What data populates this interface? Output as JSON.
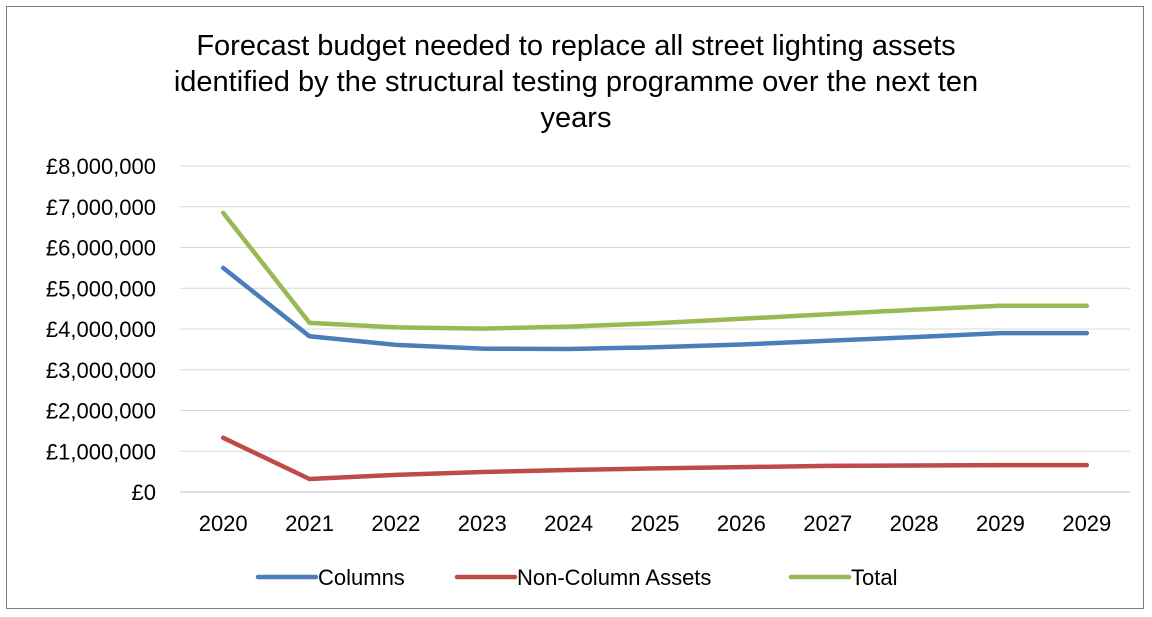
{
  "chart_data": {
    "type": "line",
    "title_lines": [
      "Forecast budget needed to replace all street lighting assets",
      "identified by the structural testing programme over the next ten",
      "years"
    ],
    "categories": [
      "2020",
      "2021",
      "2022",
      "2023",
      "2024",
      "2025",
      "2026",
      "2027",
      "2028",
      "2029",
      "2029"
    ],
    "y_ticks": [
      "£0",
      "£1,000,000",
      "£2,000,000",
      "£3,000,000",
      "£4,000,000",
      "£5,000,000",
      "£6,000,000",
      "£7,000,000",
      "£8,000,000"
    ],
    "ylim": [
      0,
      8000000
    ],
    "grid": "horizontal",
    "legend_position": "bottom",
    "series": [
      {
        "name": "Columns",
        "color": "#4a7ebb",
        "values": [
          5500000,
          3820000,
          3610000,
          3520000,
          3510000,
          3550000,
          3620000,
          3710000,
          3800000,
          3900000,
          3900000
        ]
      },
      {
        "name": "Non-Column Assets",
        "color": "#be4b48",
        "values": [
          1330000,
          320000,
          420000,
          490000,
          540000,
          580000,
          610000,
          640000,
          650000,
          660000,
          660000
        ]
      },
      {
        "name": "Total",
        "color": "#98b954",
        "values": [
          6850000,
          4150000,
          4040000,
          4010000,
          4060000,
          4140000,
          4250000,
          4360000,
          4470000,
          4570000,
          4570000
        ]
      }
    ]
  }
}
